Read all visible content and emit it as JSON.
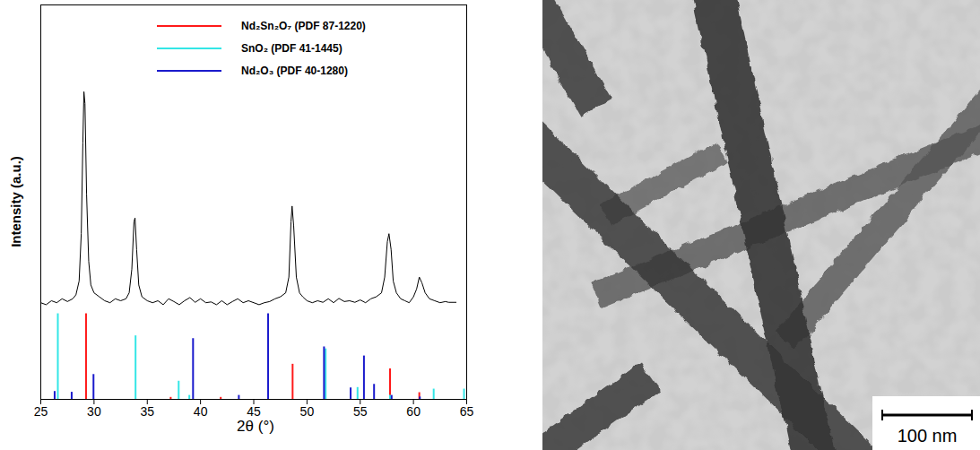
{
  "chart_data": {
    "type": "line",
    "xlabel": "2θ (°)",
    "ylabel": "Intensity (a.u.)",
    "xlim": [
      25,
      65
    ],
    "xticks": [
      25,
      30,
      35,
      40,
      45,
      50,
      55,
      60,
      65
    ],
    "ylim": [
      0,
      100
    ],
    "tick_labels": "x",
    "legend": "top",
    "series": [
      {
        "type": "line",
        "color": "#000000",
        "x": [
          25.0,
          25.5,
          26.0,
          26.5,
          27.0,
          27.5,
          28.0,
          28.3,
          28.6,
          28.8,
          28.95,
          29.05,
          29.15,
          29.3,
          29.5,
          29.7,
          30.0,
          30.5,
          31.0,
          31.5,
          32.0,
          32.5,
          33.0,
          33.3,
          33.55,
          33.75,
          33.85,
          34.0,
          34.2,
          34.5,
          35.0,
          35.5,
          36.0,
          36.5,
          37.0,
          37.5,
          38.0,
          38.5,
          39.0,
          39.5,
          40.0,
          40.5,
          41.0,
          41.5,
          42.0,
          42.5,
          43.0,
          43.5,
          44.0,
          44.5,
          45.0,
          45.5,
          46.0,
          46.5,
          47.0,
          47.5,
          48.0,
          48.3,
          48.5,
          48.6,
          48.75,
          49.0,
          49.3,
          49.6,
          50.0,
          50.5,
          51.0,
          51.5,
          52.0,
          52.5,
          53.0,
          53.5,
          54.0,
          54.5,
          55.0,
          55.5,
          56.0,
          56.5,
          57.0,
          57.3,
          57.55,
          57.7,
          57.9,
          58.1,
          58.4,
          58.8,
          59.2,
          59.6,
          60.0,
          60.3,
          60.55,
          60.8,
          61.1,
          61.5,
          62.0,
          62.5,
          63.0,
          63.3,
          64.0
        ],
        "values": [
          24.5,
          24,
          25,
          24.5,
          25.5,
          24.8,
          25.5,
          26.5,
          30,
          42,
          65,
          78,
          75,
          52,
          35,
          29,
          27,
          26,
          25,
          24.5,
          25.5,
          25,
          25.5,
          27,
          33,
          45,
          46,
          38,
          29,
          26,
          25,
          24.5,
          25,
          24,
          25.5,
          24.8,
          24,
          25,
          25.8,
          24.6,
          25.5,
          24.5,
          24.7,
          24,
          25,
          24,
          24.8,
          25.5,
          24.5,
          25,
          24.5,
          24,
          24.5,
          24.8,
          25.5,
          26,
          27,
          31,
          45,
          49,
          44,
          31,
          27,
          26,
          25,
          24.5,
          25,
          24.6,
          25.5,
          24.5,
          25.6,
          24.8,
          25,
          24.6,
          25.2,
          24.5,
          25.5,
          26,
          27,
          31,
          40,
          42,
          38,
          30,
          27,
          25.5,
          25,
          24.5,
          26,
          28,
          31,
          29.5,
          27,
          25.5,
          25,
          24.5,
          24.8,
          24.6,
          24.6
        ]
      },
      {
        "name": "Nd₂Sn₂O₇ (PDF 87-1220)",
        "type": "stick",
        "color": "#ff1a1a",
        "x": [
          29.25,
          37.2,
          41.9,
          48.65,
          57.8,
          60.55
        ],
        "values": [
          21.7,
          0.5,
          0.5,
          8.9,
          7.7,
          1.7
        ]
      },
      {
        "name": "SnO₂ (PDF 41-1445)",
        "type": "stick",
        "color": "#33e6e6",
        "x": [
          26.6,
          33.9,
          37.95,
          38.95,
          51.75,
          54.75,
          57.8,
          61.9,
          64.75
        ],
        "values": [
          21.7,
          16.1,
          4.6,
          1.0,
          12.8,
          3.0,
          1.0,
          2.6,
          2.6
        ]
      },
      {
        "name": "Nd₂O₃ (PDF 40-1280)",
        "type": "stick",
        "color": "#1a1acc",
        "x": [
          26.3,
          27.9,
          29.95,
          39.3,
          43.6,
          46.35,
          51.6,
          54.1,
          55.35,
          56.3,
          57.95,
          60.6
        ],
        "values": [
          2.0,
          1.8,
          6.3,
          15.4,
          1.0,
          21.7,
          13.3,
          2.9,
          11.0,
          3.8,
          1.0,
          0.6
        ]
      }
    ]
  },
  "image": {
    "scale_bar": "100 nm"
  }
}
